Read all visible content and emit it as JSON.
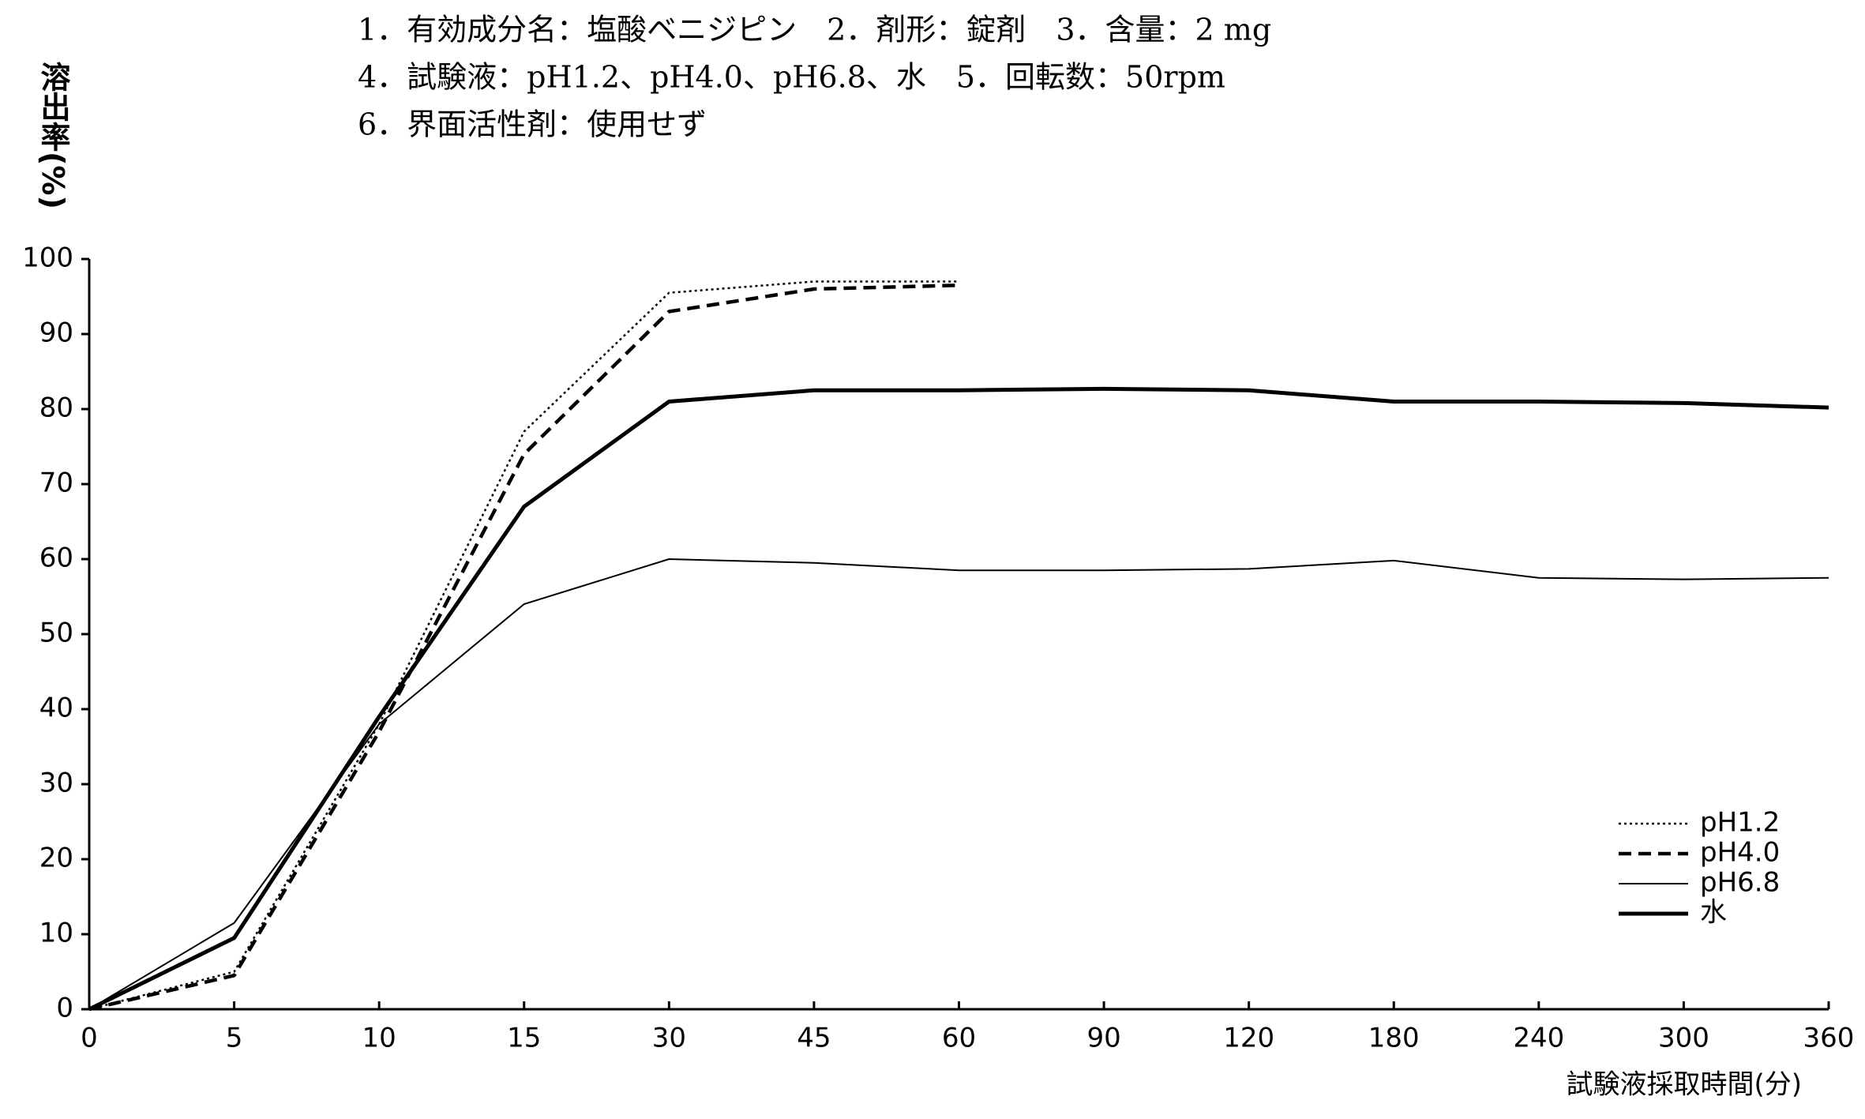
{
  "chart_data": {
    "type": "line",
    "title_lines": [
      "1．有効成分名：塩酸ベニジピン　2．剤形：錠剤　3．含量：2 mg",
      "4．試験液：pH1.2、pH4.0、pH6.8、水　5．回転数：50rpm",
      "6．界面活性剤：使用せず"
    ],
    "y_label": "溶出率(%)",
    "x_label": "試験液採取時間(分)",
    "categories": [
      "0",
      "5",
      "10",
      "15",
      "30",
      "45",
      "60",
      "90",
      "120",
      "180",
      "240",
      "300",
      "360"
    ],
    "series": [
      {
        "name": "pH1.2",
        "color": "#000000",
        "style": "dotted",
        "values": [
          0,
          5,
          38,
          77,
          95.5,
          97,
          97,
          null,
          null,
          null,
          null,
          null,
          null
        ]
      },
      {
        "name": "pH4.0",
        "color": "#000000",
        "style": "dashed",
        "values": [
          0,
          4.5,
          37,
          74,
          93,
          96,
          96.5,
          null,
          null,
          null,
          null,
          null,
          null
        ]
      },
      {
        "name": "pH6.8",
        "color": "#000000",
        "style": "thin",
        "values": [
          0,
          11.5,
          38,
          54,
          60,
          59.5,
          58.5,
          58.5,
          58.7,
          59.8,
          57.5,
          57.3,
          57.5
        ]
      },
      {
        "name": "水",
        "color": "#000000",
        "style": "thick",
        "values": [
          0,
          9.5,
          39,
          67,
          81,
          82.5,
          82.5,
          82.7,
          82.5,
          81,
          81,
          80.8,
          80.2
        ]
      }
    ],
    "ylim": [
      0,
      100
    ],
    "yticks": [
      0,
      10,
      20,
      30,
      40,
      50,
      60,
      70,
      80,
      90,
      100
    ],
    "grid": false,
    "legend": "lower right"
  }
}
